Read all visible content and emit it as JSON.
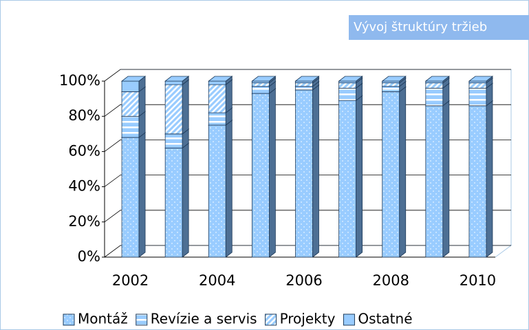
{
  "chart_data": {
    "type": "bar",
    "stacked": true,
    "title": "Vývoj štruktúry tržieb",
    "categories": [
      2002,
      null,
      2004,
      null,
      2006,
      null,
      2008,
      null,
      2010
    ],
    "series": [
      {
        "name": "Montáž",
        "color": "#99ccff",
        "values": [
          68,
          62,
          75,
          93,
          95,
          89,
          94,
          86,
          86
        ]
      },
      {
        "name": "Revízie a servis",
        "color": "#99ccff",
        "values": [
          12,
          8,
          7,
          4,
          2,
          7,
          3,
          10,
          10
        ]
      },
      {
        "name": "Projekty",
        "color": "#99ccff",
        "values": [
          14,
          28,
          16,
          2,
          2,
          3,
          2,
          3,
          3
        ]
      },
      {
        "name": "Ostatné",
        "color": "#99ccff",
        "values": [
          6,
          2,
          2,
          1,
          1,
          1,
          1,
          1,
          1
        ]
      }
    ],
    "ylim": [
      0,
      100
    ],
    "yticks": [
      {
        "value": 0,
        "label": "0%"
      },
      {
        "value": 20,
        "label": "20%"
      },
      {
        "value": 40,
        "label": "40%"
      },
      {
        "value": 60,
        "label": "60%"
      },
      {
        "value": 80,
        "label": "80%"
      },
      {
        "value": 100,
        "label": "100%"
      }
    ],
    "grid": true,
    "legend": "bottom"
  }
}
